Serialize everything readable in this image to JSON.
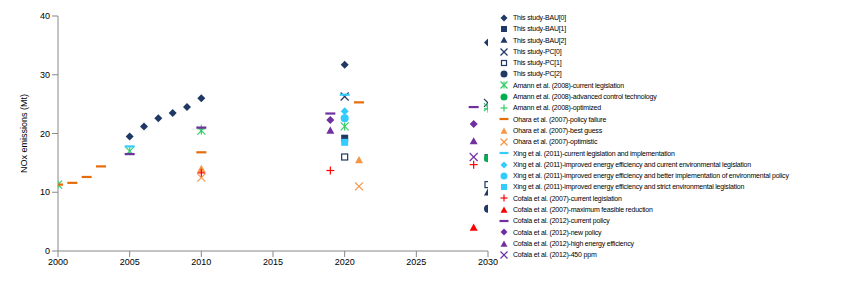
{
  "chart_data": {
    "type": "scatter",
    "y_label": "NOx emissions (Mt)",
    "xlim": [
      2000,
      2030
    ],
    "xticks": [
      2000,
      2005,
      2010,
      2015,
      2020,
      2025,
      2030
    ],
    "ylim": [
      0,
      40
    ],
    "yticks": [
      0,
      10,
      20,
      30,
      40
    ],
    "grid": false,
    "legend": "right",
    "series": [
      {
        "name": "This study-BAU[0]",
        "color": "#1F3864",
        "marker": "diamond",
        "x": [
          2005,
          2006,
          2007,
          2008,
          2009,
          2010,
          2020,
          2030
        ],
        "values": [
          19.5,
          21.2,
          22.6,
          23.5,
          24.5,
          26.0,
          31.7,
          35.5
        ]
      },
      {
        "name": "This study-BAU[1]",
        "color": "#1F3864",
        "marker": "square",
        "x": [
          2020,
          2030
        ],
        "values": [
          19.2,
          15.9
        ]
      },
      {
        "name": "This study-BAU[2]",
        "color": "#1F3864",
        "marker": "triangle",
        "x": [
          2030
        ],
        "values": [
          10.0
        ]
      },
      {
        "name": "This study-PC[0]",
        "color": "#1F3864",
        "marker": "x",
        "x": [
          2020,
          2030
        ],
        "values": [
          26.3,
          25.2
        ]
      },
      {
        "name": "This study-PC[1]",
        "color": "#1F3864",
        "marker": "open_square",
        "x": [
          2020,
          2030
        ],
        "values": [
          16.0,
          11.3
        ]
      },
      {
        "name": "This study-PC[2]",
        "color": "#1F3864",
        "marker": "circle",
        "x": [
          2030
        ],
        "values": [
          7.2
        ]
      },
      {
        "name": "Amann et al. (2008)-current legislation",
        "color": "#33CC66",
        "marker": "asterisk",
        "x": [
          2000,
          2005,
          2010,
          2020,
          2030
        ],
        "values": [
          11.3,
          17.0,
          20.5,
          21.2,
          24.5
        ]
      },
      {
        "name": "Amann et al. (2008)-advanced control technology",
        "color": "#00B050",
        "marker": "circle",
        "x": [
          2030
        ],
        "values": [
          15.8
        ]
      },
      {
        "name": "Amann et al. (2008)-optimized",
        "color": "#33CC66",
        "marker": "plus",
        "x": [
          2010,
          2030
        ],
        "values": [
          20.8,
          24.2
        ]
      },
      {
        "name": "Ohara et al. (2007)-policy failure",
        "color": "#E46C0A",
        "marker": "dash",
        "x": [
          2000,
          2001,
          2002,
          2003,
          2010,
          2021
        ],
        "values": [
          11.3,
          11.6,
          12.6,
          14.4,
          16.8,
          25.3
        ]
      },
      {
        "name": "Ohara et al. (2007)-best guess",
        "color": "#F79646",
        "marker": "triangle",
        "x": [
          2010,
          2021
        ],
        "values": [
          14.0,
          15.5
        ]
      },
      {
        "name": "Ohara et al. (2007)-optimistic",
        "color": "#F79646",
        "marker": "x",
        "x": [
          2010,
          2021
        ],
        "values": [
          12.5,
          11.0
        ]
      },
      {
        "name": "Xing et al. (2011)-current legislation and implementation",
        "color": "#33CCFF",
        "marker": "dash",
        "x": [
          2005,
          2020
        ],
        "values": [
          17.8,
          26.6
        ]
      },
      {
        "name": "Xing et al. (2011)-improved energy efficiency and current environmental legislation",
        "color": "#33CCFF",
        "marker": "diamond",
        "x": [
          2020
        ],
        "values": [
          23.8
        ]
      },
      {
        "name": "Xing et al. (2011)-improved energy efficiency and better implementation of environmental policy",
        "color": "#33CCFF",
        "marker": "circle",
        "x": [
          2020
        ],
        "values": [
          22.6
        ]
      },
      {
        "name": "Xing et al. (2011)-improved energy efficiency and strict environmental legislation",
        "color": "#33CCFF",
        "marker": "square",
        "x": [
          2020
        ],
        "values": [
          18.5
        ]
      },
      {
        "name": "Cofala et al. (2007)-current  legislation",
        "color": "#FF0000",
        "marker": "plus",
        "x": [
          2010,
          2019,
          2029
        ],
        "values": [
          13.3,
          13.7,
          14.7
        ]
      },
      {
        "name": "Cofala et al. (2007)-maximum feasible reduction",
        "color": "#FF0000",
        "marker": "triangle",
        "x": [
          2029
        ],
        "values": [
          4.0
        ]
      },
      {
        "name": "Cofala et al. (2012)-current policy",
        "color": "#7030A0",
        "marker": "dash",
        "x": [
          2005,
          2010,
          2019,
          2029
        ],
        "values": [
          16.5,
          21.0,
          23.4,
          24.5
        ]
      },
      {
        "name": "Cofala et al. (2012)-new  policy",
        "color": "#7030A0",
        "marker": "diamond",
        "x": [
          2019,
          2029
        ],
        "values": [
          22.3,
          21.6
        ]
      },
      {
        "name": "Cofala et al. (2012)-high  energy efficiency",
        "color": "#7030A0",
        "marker": "triangle",
        "x": [
          2019,
          2029
        ],
        "values": [
          20.5,
          18.7
        ]
      },
      {
        "name": "Cofala et al. (2012)-450  ppm",
        "color": "#7030A0",
        "marker": "x",
        "x": [
          2029
        ],
        "values": [
          16.0
        ]
      }
    ]
  }
}
